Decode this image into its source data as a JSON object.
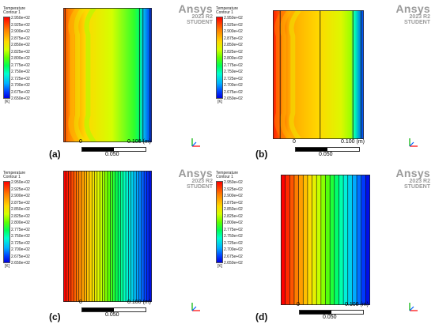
{
  "legend": {
    "title": "Temperature",
    "subtitle": "Contour 1",
    "ticks": [
      "2.950e+02",
      "2.925e+02",
      "2.900e+02",
      "2.875e+02",
      "2.850e+02",
      "2.825e+02",
      "2.800e+02",
      "2.775e+02",
      "2.750e+02",
      "2.725e+02",
      "2.700e+02",
      "2.675e+02",
      "2.650e+02"
    ],
    "unit": "[K]"
  },
  "brand": {
    "name": "Ansys",
    "version": "2023 R2",
    "edition": "STUDENT"
  },
  "scale": {
    "start": "0",
    "end": "0.100",
    "unit": "(m)",
    "mid": "0.050"
  },
  "panels": [
    {
      "label": "(a)",
      "style": "smooth-a"
    },
    {
      "label": "(b)",
      "style": "smooth-b"
    },
    {
      "label": "(c)",
      "style": "bands-fine"
    },
    {
      "label": "(d)",
      "style": "bands-coarse"
    }
  ],
  "colors": {
    "hot": "#ff0000",
    "cold": "#0000e0",
    "axis_x": "#ff0000",
    "axis_y": "#00b000",
    "axis_z": "#0060ff"
  }
}
